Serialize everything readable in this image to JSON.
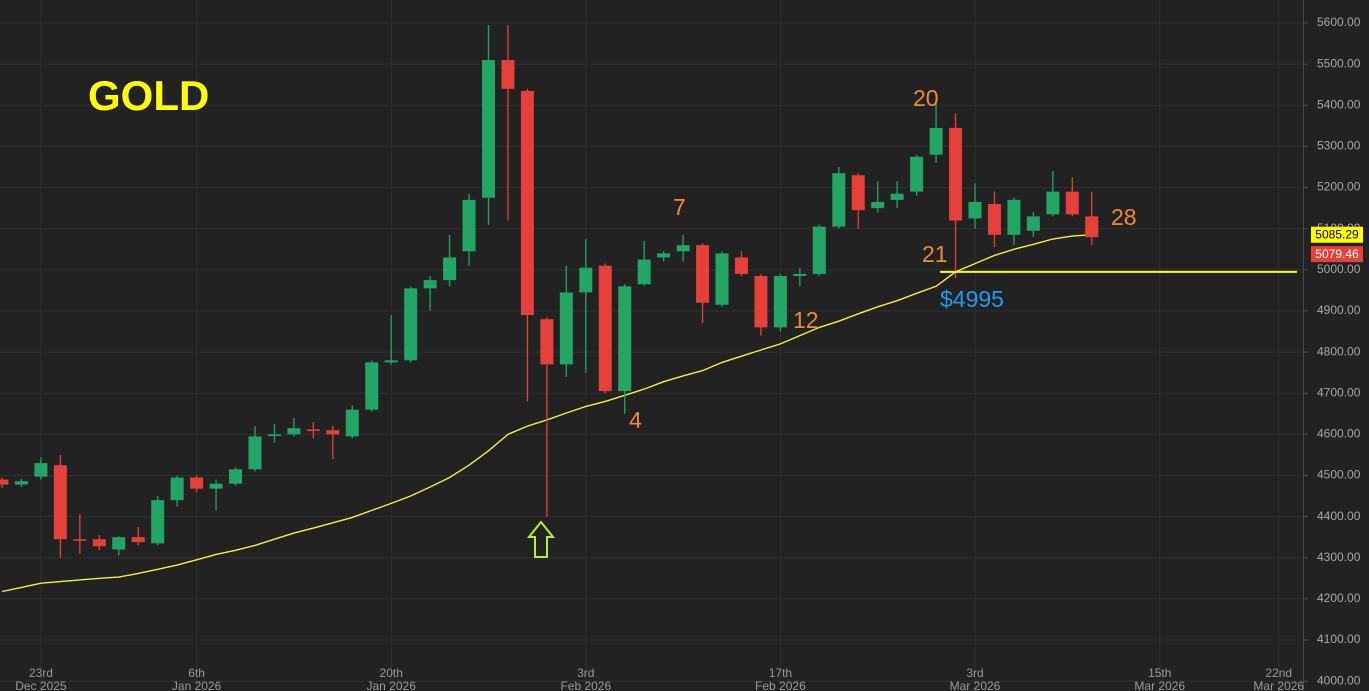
{
  "chart_data": {
    "type": "candlestick",
    "title": "GOLD",
    "x": [
      "2025-12-19",
      "2025-12-22",
      "2025-12-23",
      "2025-12-24",
      "2025-12-26",
      "2025-12-29",
      "2025-12-30",
      "2025-12-31",
      "2026-01-02",
      "2026-01-05",
      "2026-01-06",
      "2026-01-07",
      "2026-01-08",
      "2026-01-09",
      "2026-01-12",
      "2026-01-13",
      "2026-01-14",
      "2026-01-15",
      "2026-01-16",
      "2026-01-19",
      "2026-01-20",
      "2026-01-21",
      "2026-01-22",
      "2026-01-23",
      "2026-01-26",
      "2026-01-27",
      "2026-01-28",
      "2026-01-29",
      "2026-01-30",
      "2026-02-02",
      "2026-02-03",
      "2026-02-04",
      "2026-02-05",
      "2026-02-06",
      "2026-02-09",
      "2026-02-10",
      "2026-02-11",
      "2026-02-12",
      "2026-02-13",
      "2026-02-16",
      "2026-02-17",
      "2026-02-18",
      "2026-02-19",
      "2026-02-20",
      "2026-02-23",
      "2026-02-24",
      "2026-02-25",
      "2026-02-26",
      "2026-02-27",
      "2026-03-02",
      "2026-03-03",
      "2026-03-04",
      "2026-03-05",
      "2026-03-06",
      "2026-03-09",
      "2026-03-10",
      "2026-03-11"
    ],
    "open": [
      4490,
      4478,
      4497,
      4525,
      4345,
      4345,
      4320,
      4350,
      4335,
      4440,
      4495,
      4468,
      4480,
      4515,
      4596,
      4600,
      4612,
      4610,
      4595,
      4660,
      4775,
      4780,
      4955,
      4975,
      5045,
      5175,
      5510,
      5435,
      4880,
      4770,
      4945,
      5010,
      4705,
      4965,
      5030,
      5045,
      5060,
      4915,
      5030,
      4985,
      4860,
      4985,
      4990,
      5105,
      5230,
      5150,
      5170,
      5190,
      5280,
      5345,
      5125,
      5160,
      5085,
      5095,
      5135,
      5190,
      5130
    ],
    "high": [
      4495,
      4492,
      4545,
      4550,
      4405,
      4355,
      4352,
      4375,
      4450,
      4500,
      4500,
      4490,
      4520,
      4620,
      4625,
      4640,
      4630,
      4620,
      4670,
      4780,
      4890,
      4960,
      4985,
      5085,
      5185,
      5595,
      5595,
      5440,
      4885,
      5010,
      5075,
      5015,
      4965,
      5070,
      5045,
      5085,
      5065,
      5045,
      5045,
      4990,
      4990,
      5005,
      5110,
      5250,
      5235,
      5215,
      5215,
      5280,
      5415,
      5380,
      5210,
      5190,
      5175,
      5140,
      5240,
      5225,
      5190
    ],
    "low": [
      4470,
      4472,
      4490,
      4300,
      4310,
      4318,
      4305,
      4330,
      4330,
      4425,
      4460,
      4415,
      4475,
      4510,
      4580,
      4595,
      4590,
      4540,
      4590,
      4655,
      4770,
      4775,
      4900,
      4960,
      5010,
      5110,
      5120,
      4680,
      4400,
      4740,
      4750,
      4700,
      4650,
      4960,
      5020,
      5020,
      4870,
      4910,
      4985,
      4840,
      4850,
      4960,
      4985,
      5100,
      5100,
      5140,
      5150,
      5180,
      5260,
      4980,
      5100,
      5055,
      5060,
      5080,
      5130,
      5130,
      5060
    ],
    "close": [
      4478,
      4486,
      4530,
      4345,
      4342,
      4328,
      4350,
      4338,
      4440,
      4495,
      4468,
      4480,
      4515,
      4595,
      4600,
      4615,
      4608,
      4600,
      4660,
      4775,
      4780,
      4955,
      4975,
      5030,
      5170,
      5510,
      5440,
      4890,
      4770,
      4945,
      5005,
      4705,
      4960,
      5025,
      5040,
      5060,
      4920,
      5040,
      4990,
      4860,
      4985,
      4990,
      5105,
      5235,
      5145,
      5165,
      5185,
      5275,
      5345,
      5120,
      5165,
      5085,
      5170,
      5130,
      5190,
      5135,
      5079.46
    ],
    "up_color": "#22a565",
    "down_color": "#e5413a",
    "moving_average": {
      "color": "#f5f03a",
      "values": [
        4218,
        4228,
        4238,
        4242,
        4246,
        4250,
        4253,
        4262,
        4272,
        4282,
        4295,
        4308,
        4318,
        4330,
        4345,
        4360,
        4372,
        4385,
        4398,
        4415,
        4432,
        4450,
        4472,
        4495,
        4525,
        4560,
        4600,
        4620,
        4635,
        4652,
        4668,
        4680,
        4695,
        4710,
        4728,
        4742,
        4755,
        4775,
        4790,
        4805,
        4820,
        4840,
        4860,
        4875,
        4893,
        4910,
        4925,
        4943,
        4960,
        4995,
        5015,
        5035,
        5050,
        5062,
        5075,
        5082,
        5085.29
      ]
    },
    "price_labels": [
      {
        "value": 5085.29,
        "color": "#ffff00"
      },
      {
        "value": 5079.46,
        "color": "#e5413a"
      }
    ],
    "support": {
      "value": 4995,
      "label": "$4995",
      "color": "#ffff00"
    },
    "annotations": [
      "20",
      "7",
      "4",
      "12",
      "21",
      "28"
    ],
    "ylim": [
      3976,
      5656
    ],
    "yticks": [
      {
        "value": 4000,
        "label": "4000.00"
      },
      {
        "value": 4100,
        "label": "4100.00"
      },
      {
        "value": 4200,
        "label": "4200.00"
      },
      {
        "value": 4300,
        "label": "4300.00"
      },
      {
        "value": 4400,
        "label": "4400.00"
      },
      {
        "value": 4500,
        "label": "4500.00"
      },
      {
        "value": 4600,
        "label": "4600.00"
      },
      {
        "value": 4700,
        "label": "4700.00"
      },
      {
        "value": 4800,
        "label": "4800.00"
      },
      {
        "value": 4900,
        "label": "4900.00"
      },
      {
        "value": 5000,
        "label": "5000.00"
      },
      {
        "value": 5100,
        "label": "5100.00"
      },
      {
        "value": 5200,
        "label": "5200.00"
      },
      {
        "value": 5300,
        "label": "5300.00"
      },
      {
        "value": 5400,
        "label": "5400.00"
      },
      {
        "value": 5500,
        "label": "5500.00"
      },
      {
        "value": 5600,
        "label": "5600.00"
      }
    ],
    "xticks": [
      {
        "value": "2025-12-23",
        "label": [
          "23rd",
          "Dec 2025"
        ]
      },
      {
        "value": "2026-01-06",
        "label": [
          "6th",
          "Jan 2026"
        ]
      },
      {
        "value": "2026-01-20",
        "label": [
          "20th",
          "Jan 2026"
        ]
      },
      {
        "value": "2026-02-03",
        "label": [
          "3rd",
          "Feb 2026"
        ]
      },
      {
        "value": "2026-02-17",
        "label": [
          "17th",
          "Feb 2026"
        ]
      },
      {
        "value": "2026-03-03",
        "label": [
          "3rd",
          "Mar 2026"
        ]
      },
      {
        "value": "2026-03-15",
        "label": [
          "15th",
          "Mar 2026"
        ]
      },
      {
        "value": "2026-03-22",
        "label": [
          "22nd",
          "Mar 2026"
        ]
      }
    ],
    "grid": true
  }
}
